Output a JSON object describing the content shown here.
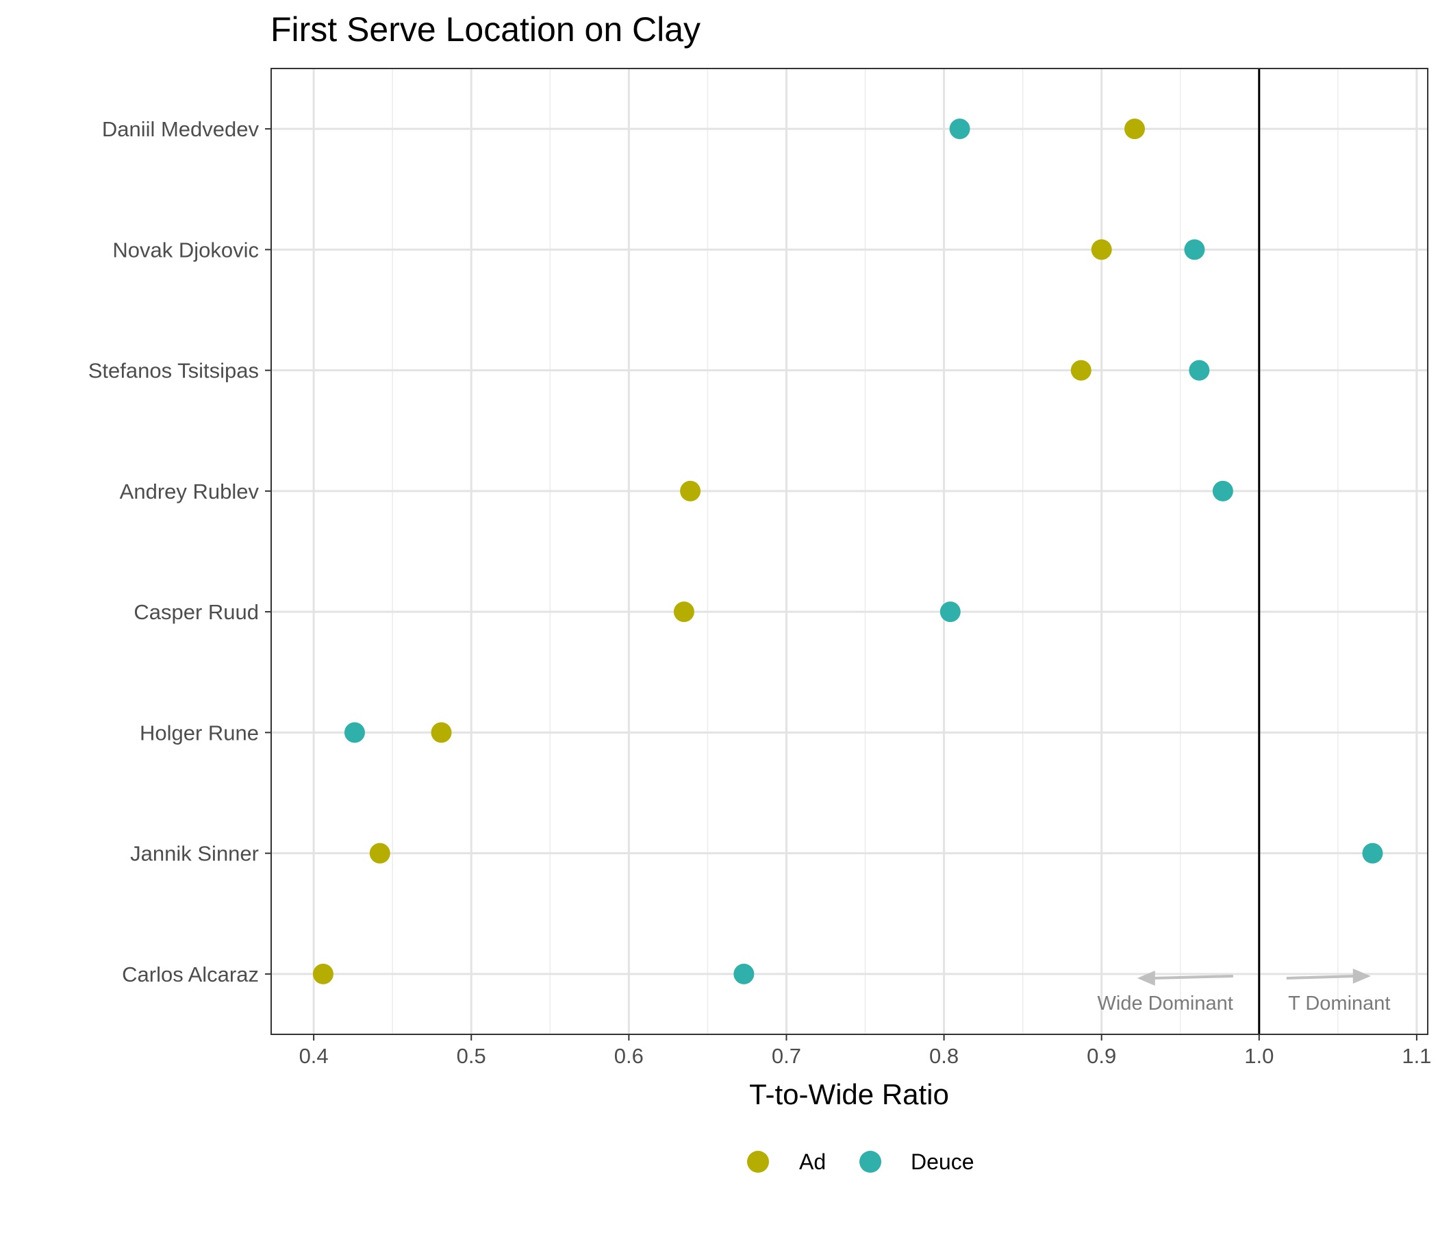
{
  "chart_data": {
    "type": "scatter",
    "title": "First Serve Location on Clay",
    "xlabel": "T-to-Wide Ratio",
    "ylabel": "",
    "xlim": [
      0.373,
      1.107
    ],
    "x_ticks": [
      0.4,
      0.5,
      0.6,
      0.7,
      0.8,
      0.9,
      1.0,
      1.1
    ],
    "x_tick_labels": [
      "0.4",
      "0.5",
      "0.6",
      "0.7",
      "0.8",
      "0.9",
      "1.0",
      "1.1"
    ],
    "reference_line": 1.0,
    "categories": [
      "Carlos Alcaraz",
      "Jannik Sinner",
      "Holger Rune",
      "Casper Ruud",
      "Andrey Rublev",
      "Stefanos Tsitsipas",
      "Novak Djokovic",
      "Daniil Medvedev"
    ],
    "series": [
      {
        "name": "Ad",
        "color": "#b5ae00",
        "values": [
          0.406,
          0.442,
          0.481,
          0.635,
          0.639,
          0.887,
          0.9,
          0.921
        ]
      },
      {
        "name": "Deuce",
        "color": "#30b0aa",
        "values": [
          0.673,
          1.072,
          0.426,
          0.804,
          0.977,
          0.962,
          0.959,
          0.81
        ]
      }
    ],
    "legend": {
      "position": "bottom",
      "labels": [
        "Ad",
        "Deuce"
      ]
    },
    "annotations": {
      "left": "Wide Dominant",
      "right": "T Dominant",
      "arrow_color": "#c0c0c0"
    },
    "grid": true
  }
}
